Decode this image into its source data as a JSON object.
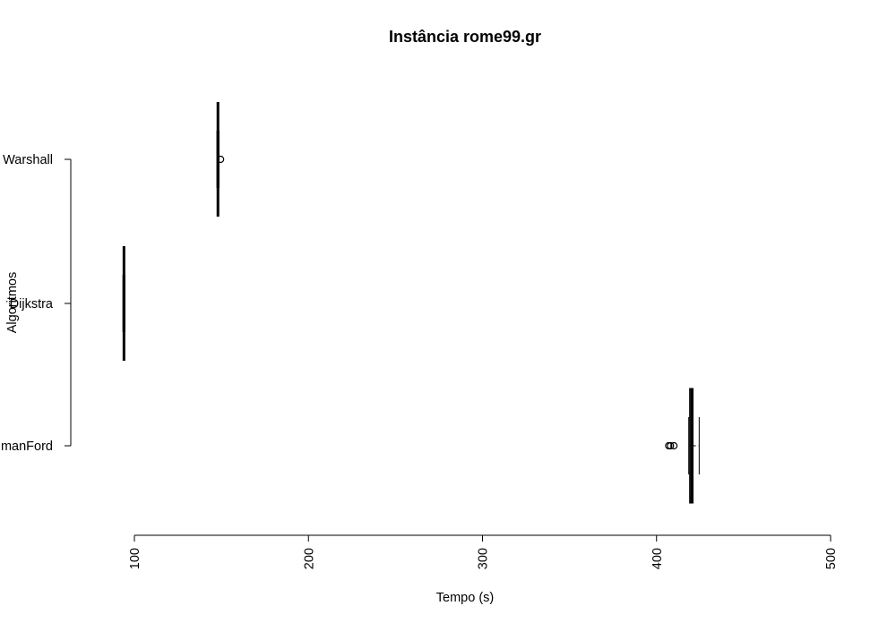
{
  "chart_data": {
    "type": "boxplot",
    "orientation": "horizontal",
    "title": "Instância rome99.gr",
    "xlabel": "Tempo (s)",
    "ylabel": "Algoritmos",
    "xlim": [
      100,
      500
    ],
    "xticks": [
      100,
      200,
      300,
      400,
      500
    ],
    "categories": [
      "BellmanFord",
      "Dijkstra",
      "FloydWarshall"
    ],
    "category_labels_visible": [
      "manFord",
      "Dijkstra",
      "Warshall"
    ],
    "series": [
      {
        "category": "BellmanFord",
        "min": 418.5,
        "q1": 419.0,
        "median": 420.0,
        "q3": 421.0,
        "max": 424.5,
        "outliers": [
          407.0,
          408.0,
          410.0
        ]
      },
      {
        "category": "Dijkstra",
        "min": 94.0,
        "q1": 94.0,
        "median": 94.0,
        "q3": 94.0,
        "max": 94.0,
        "outliers": []
      },
      {
        "category": "FloydWarshall",
        "min": 148.0,
        "q1": 148.0,
        "median": 148.0,
        "q3": 148.0,
        "max": 148.0,
        "outliers": [
          149.5
        ]
      }
    ],
    "grid": false,
    "legend": "none"
  }
}
